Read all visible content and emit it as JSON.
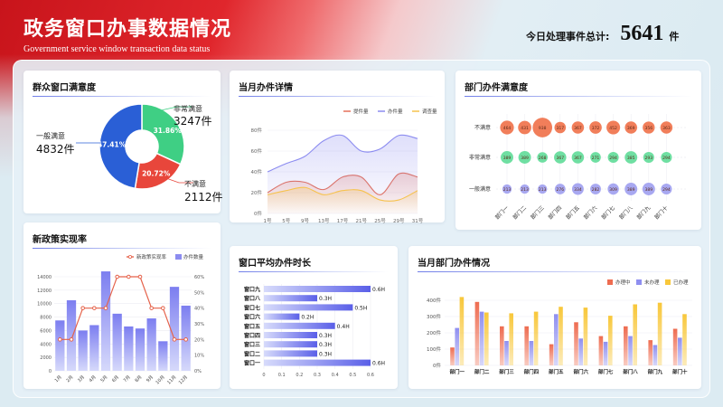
{
  "header": {
    "title": "政务窗口办事数据情况",
    "subtitle": "Government service window transaction data status",
    "total_label": "今日处理事件总计:",
    "total_value": "5641",
    "total_unit": "件"
  },
  "colors": {
    "red": "#e8463b",
    "green": "#3fcf84",
    "blue": "#2a5fd6",
    "orange": "#f07048",
    "purple": "#8c8cf0",
    "yellow": "#f6c63d"
  },
  "cards": {
    "satisfaction": "群众窗口满意度",
    "monthly": "当月办件详情",
    "dept_satisfaction": "部门办件满意度",
    "policy": "新政策实现率",
    "duration": "窗口平均办件时长",
    "dept_work": "当月部门办件情况"
  },
  "chart_data": [
    {
      "type": "pie",
      "title": "群众窗口满意度",
      "slices": [
        {
          "name": "非常满意",
          "count": "3247件",
          "percent": 31.86,
          "label": "31.86%",
          "color": "#3fcf84"
        },
        {
          "name": "不满意",
          "count": "2112件",
          "percent": 20.72,
          "label": "20.72%",
          "color": "#e8463b"
        },
        {
          "name": "一般满意",
          "count": "4832件",
          "percent": 47.41,
          "label": "47.41%",
          "color": "#2a5fd6"
        }
      ]
    },
    {
      "type": "area",
      "title": "当月办件详情",
      "x": [
        "1号",
        "5号",
        "9号",
        "13号",
        "17号",
        "21号",
        "25号",
        "29号",
        "31号"
      ],
      "yticks": [
        "0件",
        "20件",
        "40件",
        "60件",
        "80件"
      ],
      "ylim": [
        0,
        80
      ],
      "series": [
        {
          "name": "提件量",
          "color": "#e5705a",
          "values": [
            20,
            30,
            30,
            23,
            35,
            35,
            18,
            38,
            35
          ]
        },
        {
          "name": "办件量",
          "color": "#8c8cf0",
          "values": [
            40,
            48,
            55,
            70,
            75,
            60,
            62,
            75,
            72
          ]
        },
        {
          "name": "调查量",
          "color": "#f6c24d",
          "values": [
            18,
            22,
            25,
            18,
            22,
            22,
            13,
            13,
            22
          ]
        }
      ]
    },
    {
      "type": "scatter",
      "title": "部门办件满意度",
      "categories": [
        "部门一",
        "部门二",
        "部门三",
        "部门四",
        "部门五",
        "部门六",
        "部门七",
        "部门八",
        "部门九",
        "部门十"
      ],
      "rows": [
        "不满意",
        "非常满意",
        "一般满意"
      ],
      "series": [
        {
          "name": "不满意",
          "color": "#f07048",
          "values": [
            464,
            431,
            938,
            317,
            367,
            372,
            452,
            369,
            356,
            363
          ]
        },
        {
          "name": "非常满意",
          "color": "#5fdc98",
          "values": [
            389,
            389,
            268,
            367,
            367,
            271,
            294,
            385,
            293,
            294
          ]
        },
        {
          "name": "一般满意",
          "color": "#9e9ef0",
          "values": [
            213,
            213,
            213,
            276,
            334,
            282,
            309,
            389,
            389,
            294
          ]
        }
      ]
    },
    {
      "type": "bar",
      "title": "新政策实现率",
      "categories": [
        "1月",
        "2月",
        "3月",
        "4月",
        "5月",
        "6月",
        "7月",
        "8月",
        "9月",
        "10月",
        "11月",
        "12月"
      ],
      "yticks_left": [
        "0",
        "2000",
        "4000",
        "6000",
        "8000",
        "10000",
        "12000",
        "14000"
      ],
      "yticks_right": [
        "0%",
        "10%",
        "20%",
        "30%",
        "40%",
        "50%",
        "60%"
      ],
      "ylim_left": [
        0,
        14000
      ],
      "ylim_right": [
        0,
        60
      ],
      "series": [
        {
          "name": "办件数量",
          "type": "bar",
          "color": "#8c8cf0",
          "values": [
            7500,
            10500,
            6000,
            6800,
            14800,
            8500,
            6600,
            6300,
            7800,
            4400,
            12500,
            9700
          ]
        },
        {
          "name": "新政策实现率",
          "type": "line",
          "color": "#e5624a",
          "values": [
            20,
            20,
            40,
            40,
            40,
            60,
            60,
            60,
            40,
            40,
            20,
            20
          ]
        }
      ]
    },
    {
      "type": "bar",
      "orientation": "horizontal",
      "title": "窗口平均办件时长",
      "categories": [
        "窗口九",
        "窗口八",
        "窗口七",
        "窗口六",
        "窗口五",
        "窗口四",
        "窗口三",
        "窗口二",
        "窗口一"
      ],
      "values": [
        0.6,
        0.3,
        0.5,
        0.2,
        0.4,
        0.3,
        0.3,
        0.3,
        0.6
      ],
      "labels": [
        "0.6H",
        "0.3H",
        "0.5H",
        "0.2H",
        "0.4H",
        "0.3H",
        "0.3H",
        "0.3H",
        "0.6H"
      ],
      "xticks": [
        "0",
        "0.1",
        "0.2",
        "0.3",
        "0.4",
        "0.5",
        "0.6"
      ],
      "xlim": [
        0,
        0.6
      ]
    },
    {
      "type": "bar",
      "title": "当月部门办件情况",
      "categories": [
        "部门一",
        "部门二",
        "部门三",
        "部门四",
        "部门五",
        "部门六",
        "部门七",
        "部门八",
        "部门九",
        "部门十"
      ],
      "yticks": [
        "0件",
        "100件",
        "200件",
        "300件",
        "400件"
      ],
      "ylim": [
        0,
        400
      ],
      "series": [
        {
          "name": "办理中",
          "color": "#ee6c50",
          "values": [
            110,
            390,
            240,
            240,
            130,
            265,
            180,
            240,
            155,
            225
          ]
        },
        {
          "name": "未办理",
          "color": "#8f8ff0",
          "values": [
            230,
            330,
            150,
            150,
            315,
            165,
            145,
            180,
            125,
            170
          ]
        },
        {
          "name": "已办理",
          "color": "#f8c73a",
          "values": [
            420,
            325,
            320,
            330,
            360,
            355,
            305,
            375,
            385,
            315
          ]
        }
      ]
    }
  ]
}
